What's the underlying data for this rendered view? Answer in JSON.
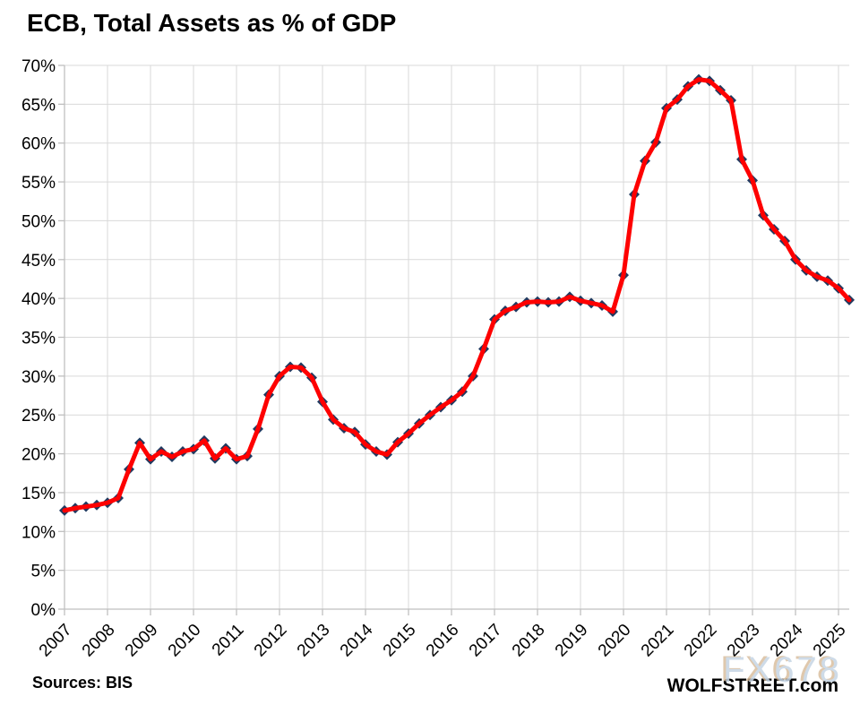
{
  "header": {
    "title": "ECB, Total Assets as % of GDP"
  },
  "footer": {
    "sources": "Sources: BIS",
    "branding": "WOLFSTREET.com"
  },
  "watermark": {
    "text": "FX678"
  },
  "colors": {
    "line": "#fe0000",
    "marker": "#203a60",
    "gridline": "#d9d9d9",
    "axis": "#bfbfbf",
    "text": "#000000",
    "background": "#ffffff",
    "watermark_fill": "#c6d5e4",
    "watermark_shadow": "#d5b793"
  },
  "chart_data": {
    "type": "line",
    "title": "ECB, Total Assets as % of GDP",
    "xlabel": "",
    "ylabel": "Total assets as % of GDP",
    "grid": true,
    "legend": "none",
    "marker": "diamond",
    "ylim": [
      0,
      70
    ],
    "y_ticks": [
      0,
      5,
      10,
      15,
      20,
      25,
      30,
      35,
      40,
      45,
      50,
      55,
      60,
      65,
      70
    ],
    "y_tick_suffix": "%",
    "x_ticks": [
      2007,
      2008,
      2009,
      2010,
      2011,
      2012,
      2013,
      2014,
      2015,
      2016,
      2017,
      2018,
      2019,
      2020,
      2021,
      2022,
      2023,
      2024,
      2025
    ],
    "x": [
      2007.0,
      2007.25,
      2007.5,
      2007.75,
      2008.0,
      2008.25,
      2008.5,
      2008.75,
      2009.0,
      2009.25,
      2009.5,
      2009.75,
      2010.0,
      2010.25,
      2010.5,
      2010.75,
      2011.0,
      2011.25,
      2011.5,
      2011.75,
      2012.0,
      2012.25,
      2012.5,
      2012.75,
      2013.0,
      2013.25,
      2013.5,
      2013.75,
      2014.0,
      2014.25,
      2014.5,
      2014.75,
      2015.0,
      2015.25,
      2015.5,
      2015.75,
      2016.0,
      2016.25,
      2016.5,
      2016.75,
      2017.0,
      2017.25,
      2017.5,
      2017.75,
      2018.0,
      2018.25,
      2018.5,
      2018.75,
      2019.0,
      2019.25,
      2019.5,
      2019.75,
      2020.0,
      2020.25,
      2020.5,
      2020.75,
      2021.0,
      2021.25,
      2021.5,
      2021.75,
      2022.0,
      2022.25,
      2022.5,
      2022.75,
      2023.0,
      2023.25,
      2023.5,
      2023.75,
      2024.0,
      2024.25,
      2024.5,
      2024.75,
      2025.0,
      2025.25
    ],
    "values": [
      12.7,
      13.0,
      13.2,
      13.4,
      13.7,
      14.3,
      18.0,
      21.4,
      19.3,
      20.3,
      19.6,
      20.3,
      20.6,
      21.7,
      19.4,
      20.7,
      19.3,
      19.7,
      23.2,
      27.6,
      30.0,
      31.2,
      31.1,
      29.8,
      26.7,
      24.4,
      23.3,
      22.8,
      21.2,
      20.3,
      19.9,
      21.5,
      22.6,
      23.9,
      25.0,
      26.0,
      26.9,
      28.0,
      30.0,
      33.5,
      37.3,
      38.4,
      38.9,
      39.5,
      39.6,
      39.5,
      39.6,
      40.2,
      39.7,
      39.4,
      39.1,
      38.3,
      43.0,
      53.4,
      57.7,
      60.1,
      64.5,
      65.6,
      67.3,
      68.2,
      68.0,
      66.8,
      65.5,
      57.9,
      55.2,
      50.7,
      48.9,
      47.4,
      45.0,
      43.6,
      42.8,
      42.3,
      41.3,
      39.8
    ]
  }
}
